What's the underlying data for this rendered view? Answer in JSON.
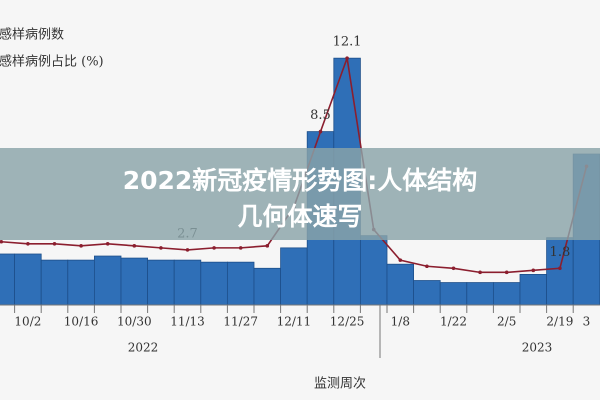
{
  "banner": {
    "lines": [
      "2022新冠疫情形势图:人体结构",
      "几何体速写"
    ]
  },
  "chart_data": {
    "type": "bar",
    "categories": [
      null,
      "10/2",
      null,
      "10/16",
      null,
      "10/30",
      null,
      "11/13",
      null,
      "11/27",
      null,
      "12/11",
      null,
      "12/25",
      null,
      "1/8",
      null,
      "1/22",
      null,
      "2/5",
      null,
      "2/19",
      "3"
    ],
    "series": [
      {
        "name": "流感样病例数",
        "color": "#2f6fb7",
        "type": "bar",
        "values": [
          2.5,
          2.5,
          2.2,
          2.2,
          2.4,
          2.3,
          2.2,
          2.2,
          2.1,
          2.1,
          1.8,
          2.8,
          8.5,
          12.1,
          3.4,
          2.0,
          1.2,
          1.1,
          1.1,
          1.1,
          1.5,
          3.3,
          7.4
        ]
      },
      {
        "name": "流感样病例占比 (%)",
        "color": "#8b1e2e",
        "type": "line",
        "values": [
          3.1,
          3.0,
          3.0,
          2.9,
          3.0,
          2.9,
          2.8,
          2.7,
          2.8,
          2.8,
          2.9,
          4.8,
          8.5,
          12.1,
          3.7,
          2.2,
          1.9,
          1.8,
          1.6,
          1.6,
          1.7,
          1.8,
          6.8
        ],
        "value_labels": [
          null,
          null,
          null,
          null,
          null,
          null,
          null,
          "2.7",
          null,
          null,
          null,
          null,
          "8.5",
          "12.1",
          null,
          null,
          null,
          null,
          null,
          null,
          null,
          "1.8",
          null
        ]
      }
    ],
    "ylim": [
      0,
      15
    ],
    "year_labels": [
      "2022",
      "2023"
    ],
    "x_label": "监测周次"
  }
}
